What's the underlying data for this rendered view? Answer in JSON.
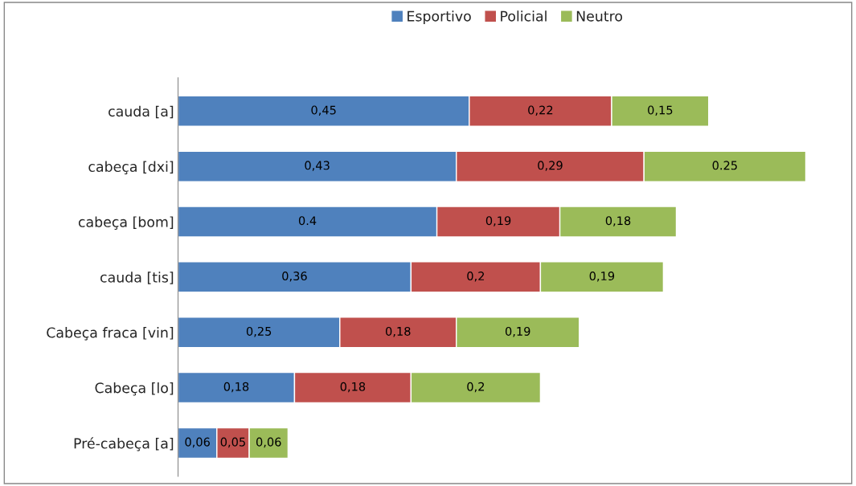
{
  "chart_data": {
    "type": "bar",
    "orientation": "horizontal",
    "stacked": true,
    "legend": "top",
    "grid": false,
    "tick_labels": "y",
    "categories": [
      "cauda [a]",
      "cabeça [dxi]",
      "cabeça [bom]",
      "cauda [tis]",
      "Cabeça fraca [vin]",
      "Cabeça [lo]",
      "Pré-cabeça [a]"
    ],
    "series": [
      {
        "name": "Esportivo",
        "color": "#4f81bd",
        "values": [
          0.45,
          0.43,
          0.4,
          0.36,
          0.25,
          0.18,
          0.06
        ],
        "value_labels": [
          "0,45",
          "0,43",
          "0.4",
          "0,36",
          "0,25",
          "0,18",
          "0,06"
        ]
      },
      {
        "name": "Policial",
        "color": "#c0504d",
        "values": [
          0.22,
          0.29,
          0.19,
          0.2,
          0.18,
          0.18,
          0.05
        ],
        "value_labels": [
          "0,22",
          "0,29",
          "0,19",
          "0,2",
          "0,18",
          "0,18",
          "0,05"
        ]
      },
      {
        "name": "Neutro",
        "color": "#9bbb59",
        "values": [
          0.15,
          0.25,
          0.18,
          0.19,
          0.19,
          0.2,
          0.06
        ],
        "value_labels": [
          "0,15",
          "0.25",
          "0,18",
          "0,19",
          "0,19",
          "0,2",
          "0,06"
        ]
      }
    ]
  }
}
